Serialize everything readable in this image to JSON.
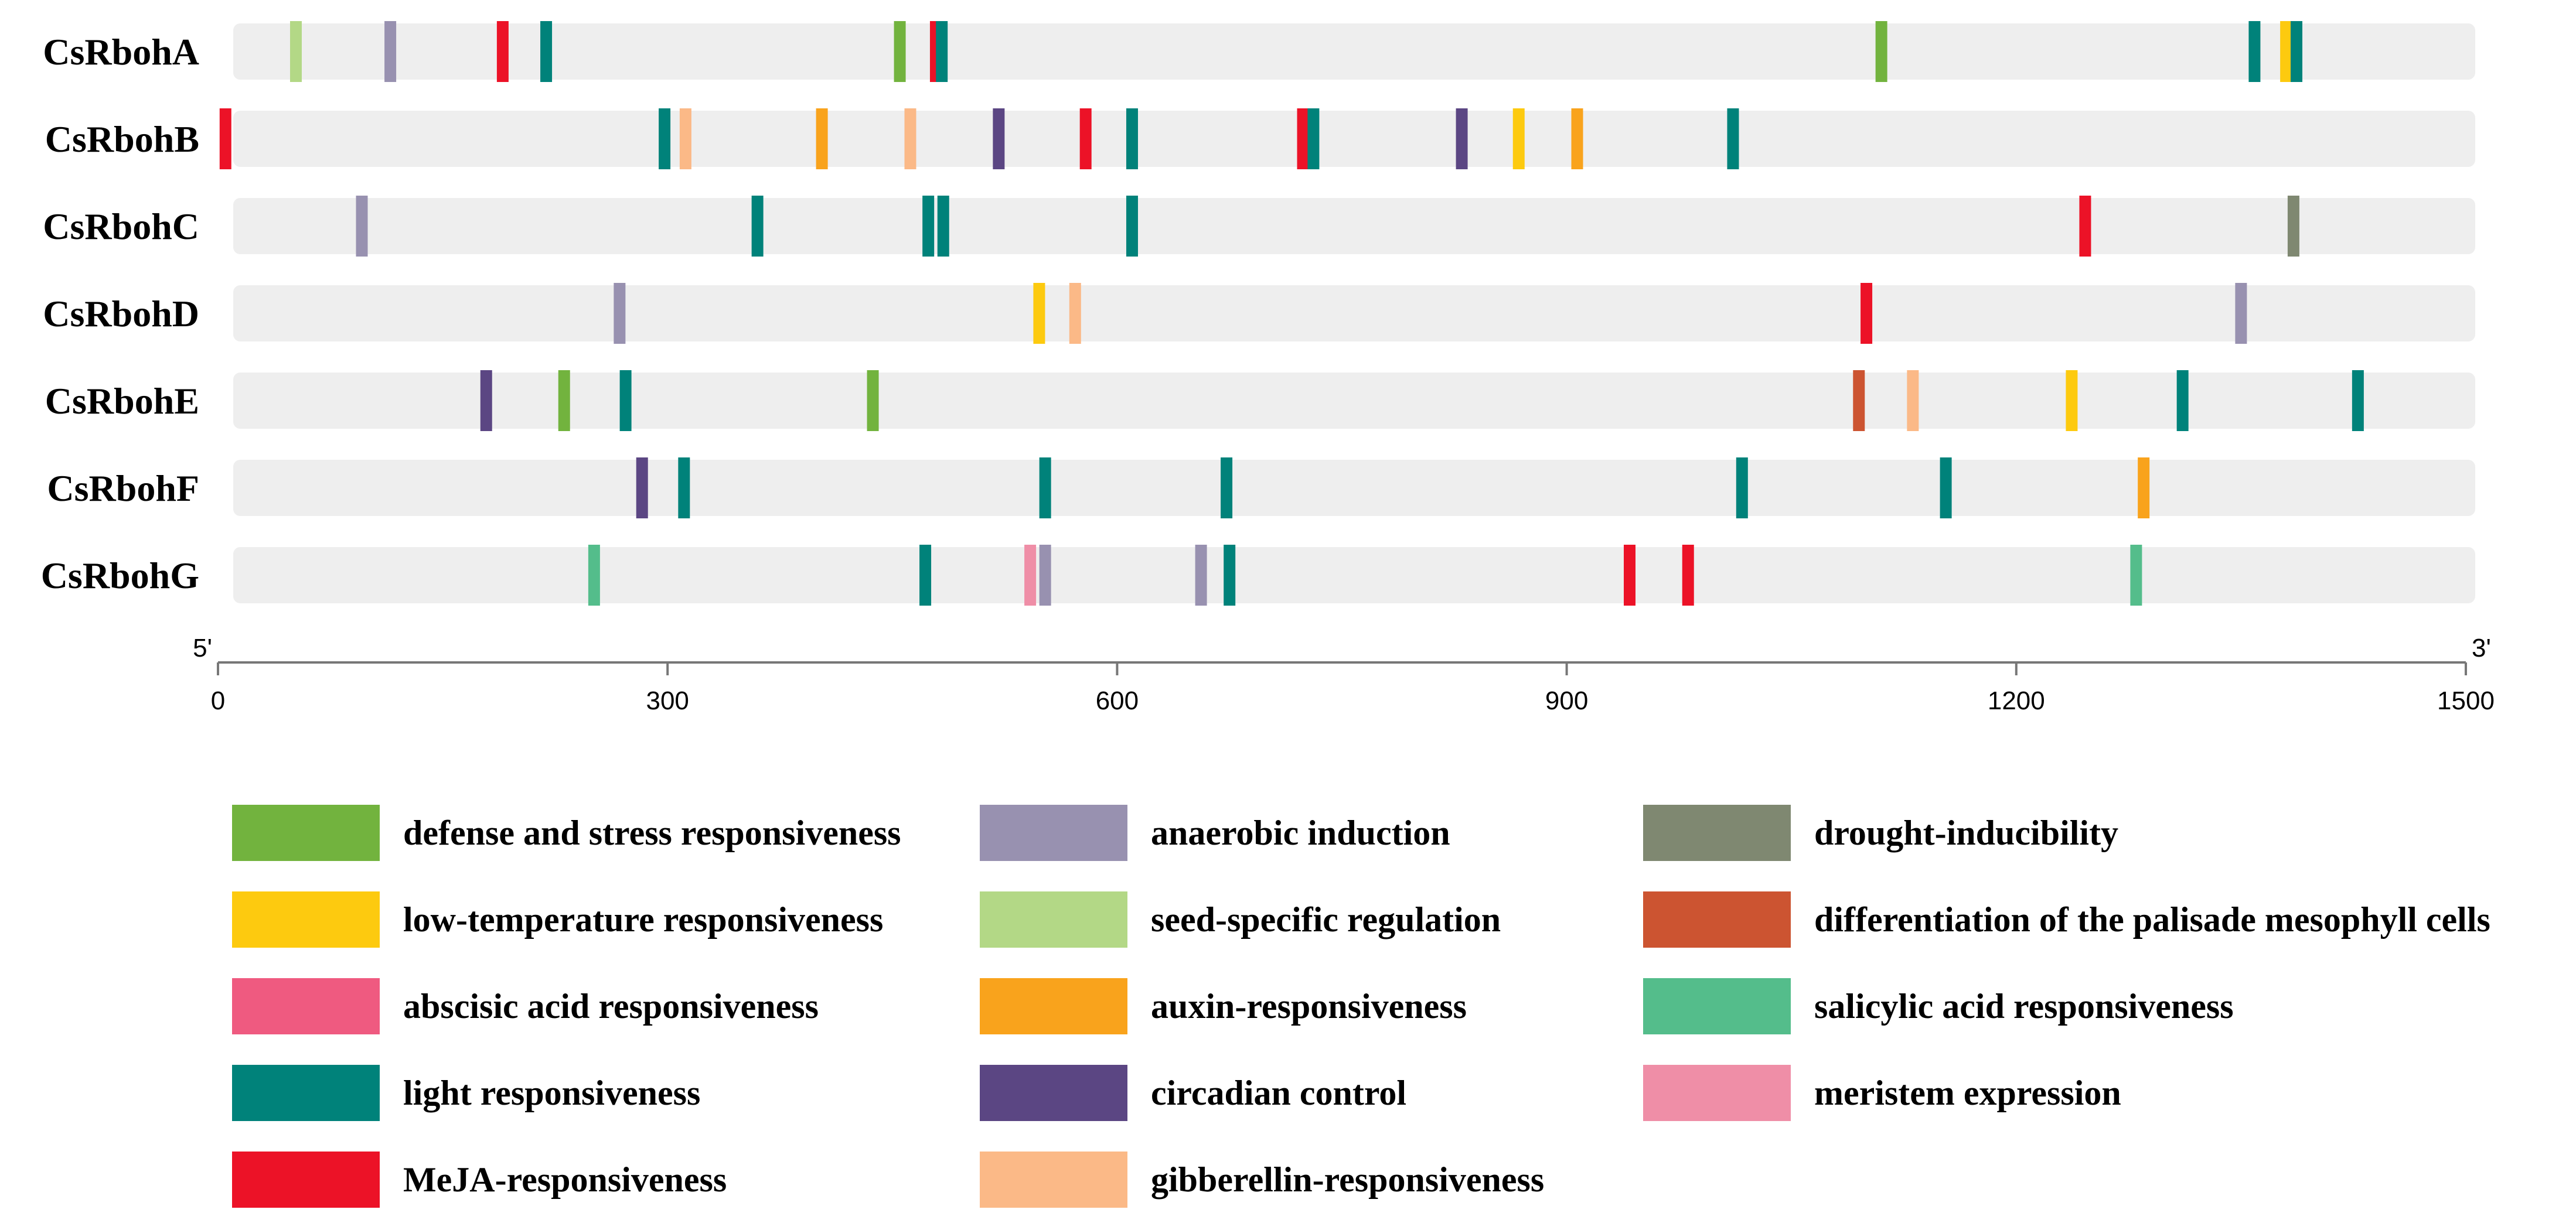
{
  "chart_data": {
    "type": "promoter-element-map",
    "genes": [
      {
        "name": "CsRbohA",
        "elements": [
          {
            "pos": 52,
            "cat": "seed-specific regulation"
          },
          {
            "pos": 115,
            "cat": "anaerobic induction"
          },
          {
            "pos": 190,
            "cat": "MeJA-responsiveness"
          },
          {
            "pos": 219,
            "cat": "light responsiveness"
          },
          {
            "pos": 455,
            "cat": "defense and stress responsiveness"
          },
          {
            "pos": 479,
            "cat": "MeJA-responsiveness"
          },
          {
            "pos": 483,
            "cat": "light responsiveness"
          },
          {
            "pos": 1110,
            "cat": "defense and stress responsiveness"
          },
          {
            "pos": 1359,
            "cat": "light responsiveness"
          },
          {
            "pos": 1380,
            "cat": "low-temperature responsiveness"
          },
          {
            "pos": 1387,
            "cat": "light responsiveness"
          }
        ]
      },
      {
        "name": "CsRbohB",
        "elements": [
          {
            "pos": 5,
            "cat": "MeJA-responsiveness"
          },
          {
            "pos": 298,
            "cat": "light responsiveness"
          },
          {
            "pos": 312,
            "cat": "gibberellin-responsiveness"
          },
          {
            "pos": 403,
            "cat": "auxin-responsiveness"
          },
          {
            "pos": 462,
            "cat": "gibberellin-responsiveness"
          },
          {
            "pos": 521,
            "cat": "circadian control"
          },
          {
            "pos": 579,
            "cat": "MeJA-responsiveness"
          },
          {
            "pos": 610,
            "cat": "light responsiveness"
          },
          {
            "pos": 724,
            "cat": "MeJA-responsiveness"
          },
          {
            "pos": 731,
            "cat": "light responsiveness"
          },
          {
            "pos": 830,
            "cat": "circadian control"
          },
          {
            "pos": 868,
            "cat": "low-temperature responsiveness"
          },
          {
            "pos": 907,
            "cat": "auxin-responsiveness"
          },
          {
            "pos": 1011,
            "cat": "light responsiveness"
          }
        ]
      },
      {
        "name": "CsRbohC",
        "elements": [
          {
            "pos": 96,
            "cat": "anaerobic induction"
          },
          {
            "pos": 360,
            "cat": "light responsiveness"
          },
          {
            "pos": 474,
            "cat": "light responsiveness"
          },
          {
            "pos": 484,
            "cat": "light responsiveness"
          },
          {
            "pos": 610,
            "cat": "light responsiveness"
          },
          {
            "pos": 1246,
            "cat": "MeJA-responsiveness"
          },
          {
            "pos": 1385,
            "cat": "drought-inducibility"
          }
        ]
      },
      {
        "name": "CsRbohD",
        "elements": [
          {
            "pos": 268,
            "cat": "anaerobic induction"
          },
          {
            "pos": 548,
            "cat": "low-temperature responsiveness"
          },
          {
            "pos": 572,
            "cat": "gibberellin-responsiveness"
          },
          {
            "pos": 1100,
            "cat": "MeJA-responsiveness"
          },
          {
            "pos": 1350,
            "cat": "anaerobic induction"
          }
        ]
      },
      {
        "name": "CsRbohE",
        "elements": [
          {
            "pos": 179,
            "cat": "circadian control"
          },
          {
            "pos": 231,
            "cat": "defense and stress responsiveness"
          },
          {
            "pos": 272,
            "cat": "light responsiveness"
          },
          {
            "pos": 437,
            "cat": "defense and stress responsiveness"
          },
          {
            "pos": 1095,
            "cat": "differentiation of the palisade mesophyll cells"
          },
          {
            "pos": 1131,
            "cat": "gibberellin-responsiveness"
          },
          {
            "pos": 1237,
            "cat": "low-temperature responsiveness"
          },
          {
            "pos": 1311,
            "cat": "light responsiveness"
          },
          {
            "pos": 1428,
            "cat": "light responsiveness"
          }
        ]
      },
      {
        "name": "CsRbohF",
        "elements": [
          {
            "pos": 283,
            "cat": "circadian control"
          },
          {
            "pos": 311,
            "cat": "light responsiveness"
          },
          {
            "pos": 552,
            "cat": "light responsiveness"
          },
          {
            "pos": 673,
            "cat": "light responsiveness"
          },
          {
            "pos": 1017,
            "cat": "light responsiveness"
          },
          {
            "pos": 1153,
            "cat": "light responsiveness"
          },
          {
            "pos": 1285,
            "cat": "auxin-responsiveness"
          }
        ]
      },
      {
        "name": "CsRbohG",
        "elements": [
          {
            "pos": 251,
            "cat": "salicylic acid responsiveness"
          },
          {
            "pos": 472,
            "cat": "light responsiveness"
          },
          {
            "pos": 542,
            "cat": "meristem expression"
          },
          {
            "pos": 552,
            "cat": "anaerobic induction"
          },
          {
            "pos": 656,
            "cat": "anaerobic induction"
          },
          {
            "pos": 675,
            "cat": "light responsiveness"
          },
          {
            "pos": 942,
            "cat": "MeJA-responsiveness"
          },
          {
            "pos": 981,
            "cat": "MeJA-responsiveness"
          },
          {
            "pos": 1280,
            "cat": "salicylic acid responsiveness"
          }
        ]
      }
    ],
    "x_axis": {
      "min": 0,
      "max": 1500,
      "ticks": [
        0,
        300,
        600,
        900,
        1200,
        1500
      ],
      "start_label": "5'",
      "end_label": "3'"
    },
    "legend": [
      {
        "label": "defense and stress responsiveness",
        "color": "#72b33e"
      },
      {
        "label": "low-temperature responsiveness",
        "color": "#fdca0f"
      },
      {
        "label": "abscisic acid responsiveness",
        "color": "#ef5a80"
      },
      {
        "label": "light responsiveness",
        "color": "#00827a"
      },
      {
        "label": "MeJA-responsiveness",
        "color": "#ec1227"
      },
      {
        "label": "anaerobic induction",
        "color": "#9891b0"
      },
      {
        "label": "seed-specific regulation",
        "color": "#b3d886"
      },
      {
        "label": "auxin-responsiveness",
        "color": "#f9a31c"
      },
      {
        "label": "circadian control",
        "color": "#5b4683"
      },
      {
        "label": "gibberellin-responsiveness",
        "color": "#fbb987"
      },
      {
        "label": "drought-inducibility",
        "color": "#7f8871"
      },
      {
        "label": "differentiation of the palisade mesophyll cells",
        "color": "#cc5431"
      },
      {
        "label": "salicylic acid responsiveness",
        "color": "#54bd8b"
      },
      {
        "label": "meristem expression",
        "color": "#ef8ea7"
      }
    ],
    "track_color": "#eeeeee"
  }
}
